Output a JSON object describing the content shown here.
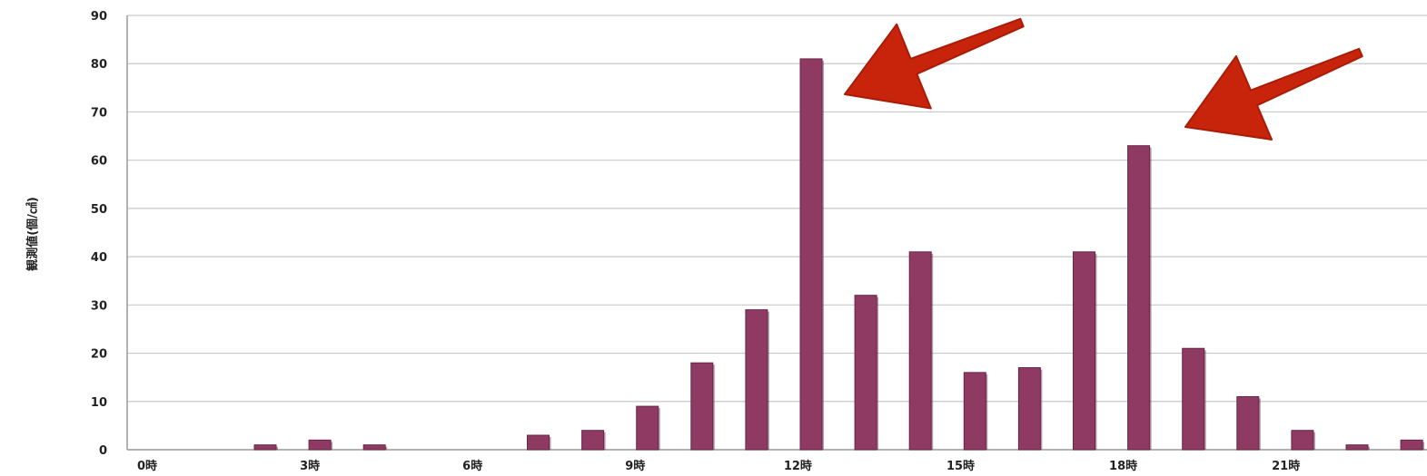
{
  "chart_data": {
    "type": "bar",
    "title": "",
    "ylabel": "観測値(個/㎠)",
    "xlabel": "",
    "ylim": [
      0,
      90
    ],
    "yticks": [
      0,
      10,
      20,
      30,
      40,
      50,
      60,
      70,
      80,
      90
    ],
    "x_tick_labels": [
      {
        "hour": 0,
        "label": "0時"
      },
      {
        "hour": 3,
        "label": "3時"
      },
      {
        "hour": 6,
        "label": "6時"
      },
      {
        "hour": 9,
        "label": "9時"
      },
      {
        "hour": 12,
        "label": "12時"
      },
      {
        "hour": 15,
        "label": "15時"
      },
      {
        "hour": 18,
        "label": "18時"
      },
      {
        "hour": 21,
        "label": "21時"
      }
    ],
    "hours": [
      0,
      1,
      2,
      3,
      4,
      5,
      6,
      7,
      8,
      9,
      10,
      11,
      12,
      13,
      14,
      15,
      16,
      17,
      18,
      19,
      20,
      21,
      22,
      23
    ],
    "values": [
      0,
      0,
      1,
      2,
      1,
      0,
      0,
      3,
      4,
      9,
      18,
      29,
      81,
      32,
      41,
      16,
      17,
      41,
      63,
      21,
      11,
      4,
      1,
      2
    ],
    "grid": true,
    "legend": "none",
    "bar_color": "#8e3a63",
    "annotation_color": "#c8240c",
    "annotations": [
      {
        "type": "arrow",
        "points_to_hour": 12
      },
      {
        "type": "arrow",
        "points_to_hour": 18
      }
    ]
  }
}
